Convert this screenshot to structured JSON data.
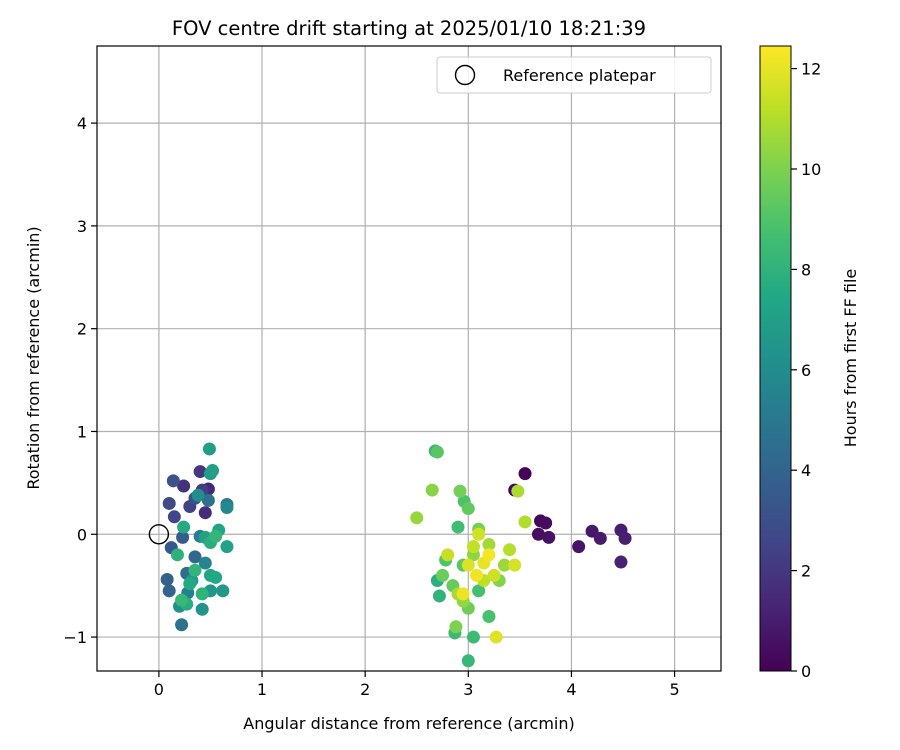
{
  "chart_data": {
    "type": "scatter",
    "title": "FOV centre drift starting at 2025/01/10 18:21:39",
    "xlabel": "Angular distance from reference (arcmin)",
    "ylabel": "Rotation from reference (arcmin)",
    "xlim": [
      -0.6,
      5.45
    ],
    "ylim": [
      -1.33,
      4.75
    ],
    "xticks": [
      0,
      1,
      2,
      3,
      4,
      5
    ],
    "yticks": [
      -1,
      0,
      1,
      2,
      3,
      4
    ],
    "grid": true,
    "legend": {
      "location": "top-right",
      "entries": [
        "Reference platepar"
      ]
    },
    "reference_point": {
      "name": "Reference platepar",
      "x": 0,
      "y": 0
    },
    "colorbar": {
      "label": "Hours from first FF file",
      "min": 0,
      "max": 12.45,
      "ticks": [
        0,
        2,
        4,
        6,
        8,
        10,
        12
      ],
      "colormap": "viridis"
    },
    "points": [
      {
        "x": 3.55,
        "y": 0.59,
        "h": 0.1
      },
      {
        "x": 3.45,
        "y": 0.43,
        "h": 0.2
      },
      {
        "x": 3.7,
        "y": 0.13,
        "h": 0.3
      },
      {
        "x": 3.75,
        "y": 0.11,
        "h": 0.4
      },
      {
        "x": 3.68,
        "y": 0.0,
        "h": 0.5
      },
      {
        "x": 3.78,
        "y": -0.03,
        "h": 0.6
      },
      {
        "x": 4.07,
        "y": -0.12,
        "h": 0.7
      },
      {
        "x": 4.2,
        "y": 0.03,
        "h": 0.8
      },
      {
        "x": 4.28,
        "y": -0.04,
        "h": 0.9
      },
      {
        "x": 4.48,
        "y": 0.04,
        "h": 1.0
      },
      {
        "x": 4.52,
        "y": -0.04,
        "h": 1.1
      },
      {
        "x": 4.48,
        "y": -0.27,
        "h": 1.2
      },
      {
        "x": 0.48,
        "y": 0.44,
        "h": 1.4
      },
      {
        "x": 0.45,
        "y": 0.21,
        "h": 1.6
      },
      {
        "x": 0.24,
        "y": 0.47,
        "h": 1.8
      },
      {
        "x": 0.4,
        "y": 0.61,
        "h": 2.0
      },
      {
        "x": 0.42,
        "y": 0.43,
        "h": 2.2
      },
      {
        "x": 0.3,
        "y": 0.27,
        "h": 2.4
      },
      {
        "x": 0.15,
        "y": 0.17,
        "h": 2.6
      },
      {
        "x": 0.1,
        "y": 0.3,
        "h": 2.8
      },
      {
        "x": 0.35,
        "y": 0.35,
        "h": 3.0
      },
      {
        "x": 0.14,
        "y": 0.52,
        "h": 3.2
      },
      {
        "x": 0.12,
        "y": -0.13,
        "h": 3.4
      },
      {
        "x": 0.23,
        "y": -0.03,
        "h": 3.6
      },
      {
        "x": 0.08,
        "y": -0.44,
        "h": 3.8
      },
      {
        "x": 0.1,
        "y": -0.55,
        "h": 4.0
      },
      {
        "x": 0.35,
        "y": -0.22,
        "h": 4.2
      },
      {
        "x": 0.27,
        "y": -0.38,
        "h": 4.4
      },
      {
        "x": 0.48,
        "y": 0.33,
        "h": 4.6
      },
      {
        "x": 0.22,
        "y": -0.88,
        "h": 4.8
      },
      {
        "x": 0.66,
        "y": 0.29,
        "h": 5.0
      },
      {
        "x": 0.4,
        "y": -0.02,
        "h": 5.2
      },
      {
        "x": 0.28,
        "y": -0.57,
        "h": 5.4
      },
      {
        "x": 0.45,
        "y": -0.28,
        "h": 5.6
      },
      {
        "x": 0.66,
        "y": 0.26,
        "h": 5.8
      },
      {
        "x": 0.38,
        "y": 0.38,
        "h": 6.0
      },
      {
        "x": 0.2,
        "y": -0.7,
        "h": 6.2
      },
      {
        "x": 0.42,
        "y": -0.73,
        "h": 6.4
      },
      {
        "x": 0.5,
        "y": -0.55,
        "h": 6.5
      },
      {
        "x": 0.62,
        "y": -0.55,
        "h": 6.6
      },
      {
        "x": 0.32,
        "y": -0.45,
        "h": 6.7
      },
      {
        "x": 0.5,
        "y": 0.59,
        "h": 6.8
      },
      {
        "x": 0.49,
        "y": 0.83,
        "h": 6.9
      },
      {
        "x": 0.52,
        "y": 0.62,
        "h": 7.0
      },
      {
        "x": 0.45,
        "y": -0.03,
        "h": 7.1
      },
      {
        "x": 0.66,
        "y": -0.12,
        "h": 7.2
      },
      {
        "x": 0.58,
        "y": 0.04,
        "h": 7.3
      },
      {
        "x": 0.55,
        "y": -0.42,
        "h": 7.4
      },
      {
        "x": 0.3,
        "y": -0.48,
        "h": 7.5
      },
      {
        "x": 0.24,
        "y": 0.07,
        "h": 7.6
      },
      {
        "x": 0.27,
        "y": -0.68,
        "h": 7.7
      },
      {
        "x": 0.5,
        "y": -0.08,
        "h": 7.8
      },
      {
        "x": 0.18,
        "y": -0.2,
        "h": 7.9
      },
      {
        "x": 0.42,
        "y": -0.58,
        "h": 8.0
      },
      {
        "x": 0.35,
        "y": -0.35,
        "h": 8.1
      },
      {
        "x": 0.55,
        "y": -0.02,
        "h": 8.2
      },
      {
        "x": 0.22,
        "y": -0.64,
        "h": 8.3
      },
      {
        "x": 0.5,
        "y": -0.4,
        "h": 7.4
      },
      {
        "x": 2.7,
        "y": -0.45,
        "h": 7.8
      },
      {
        "x": 2.72,
        "y": -0.6,
        "h": 8.0
      },
      {
        "x": 2.68,
        "y": 0.81,
        "h": 8.2
      },
      {
        "x": 3.0,
        "y": -1.23,
        "h": 8.3
      },
      {
        "x": 2.87,
        "y": -0.96,
        "h": 8.4
      },
      {
        "x": 3.05,
        "y": -1.0,
        "h": 8.5
      },
      {
        "x": 2.9,
        "y": 0.07,
        "h": 8.6
      },
      {
        "x": 3.1,
        "y": -0.55,
        "h": 8.7
      },
      {
        "x": 3.2,
        "y": -0.8,
        "h": 8.8
      },
      {
        "x": 2.96,
        "y": 0.32,
        "h": 8.9
      },
      {
        "x": 2.78,
        "y": -0.25,
        "h": 9.0
      },
      {
        "x": 2.7,
        "y": 0.8,
        "h": 9.2
      },
      {
        "x": 2.95,
        "y": -0.3,
        "h": 9.3
      },
      {
        "x": 3.0,
        "y": 0.25,
        "h": 9.4
      },
      {
        "x": 2.85,
        "y": -0.5,
        "h": 9.5
      },
      {
        "x": 2.75,
        "y": -0.4,
        "h": 9.6
      },
      {
        "x": 3.0,
        "y": -0.72,
        "h": 9.7
      },
      {
        "x": 2.92,
        "y": 0.42,
        "h": 9.8
      },
      {
        "x": 3.1,
        "y": 0.05,
        "h": 9.9
      },
      {
        "x": 2.88,
        "y": -0.9,
        "h": 10.0
      },
      {
        "x": 3.3,
        "y": -0.45,
        "h": 10.1
      },
      {
        "x": 2.65,
        "y": 0.43,
        "h": 10.2
      },
      {
        "x": 3.05,
        "y": -0.2,
        "h": 10.3
      },
      {
        "x": 2.95,
        "y": -0.65,
        "h": 10.4
      },
      {
        "x": 2.5,
        "y": 0.16,
        "h": 10.5
      },
      {
        "x": 3.35,
        "y": -0.3,
        "h": 10.6
      },
      {
        "x": 3.2,
        "y": -0.1,
        "h": 10.7
      },
      {
        "x": 2.9,
        "y": -0.58,
        "h": 10.8
      },
      {
        "x": 3.48,
        "y": 0.42,
        "h": 10.9
      },
      {
        "x": 3.55,
        "y": 0.12,
        "h": 11.0
      },
      {
        "x": 3.4,
        "y": -0.15,
        "h": 11.1
      },
      {
        "x": 3.15,
        "y": -0.45,
        "h": 11.2
      },
      {
        "x": 3.05,
        "y": -0.12,
        "h": 11.3
      },
      {
        "x": 2.8,
        "y": -0.2,
        "h": 11.4
      },
      {
        "x": 3.25,
        "y": -0.4,
        "h": 11.5
      },
      {
        "x": 3.1,
        "y": 0.0,
        "h": 11.6
      },
      {
        "x": 3.45,
        "y": -0.3,
        "h": 11.7
      },
      {
        "x": 3.0,
        "y": -0.3,
        "h": 11.8
      },
      {
        "x": 3.27,
        "y": -1.0,
        "h": 11.9
      },
      {
        "x": 3.15,
        "y": -0.28,
        "h": 12.0
      },
      {
        "x": 2.95,
        "y": -0.58,
        "h": 12.1
      },
      {
        "x": 3.08,
        "y": -0.4,
        "h": 12.2
      },
      {
        "x": 3.2,
        "y": -0.2,
        "h": 12.3
      }
    ]
  }
}
